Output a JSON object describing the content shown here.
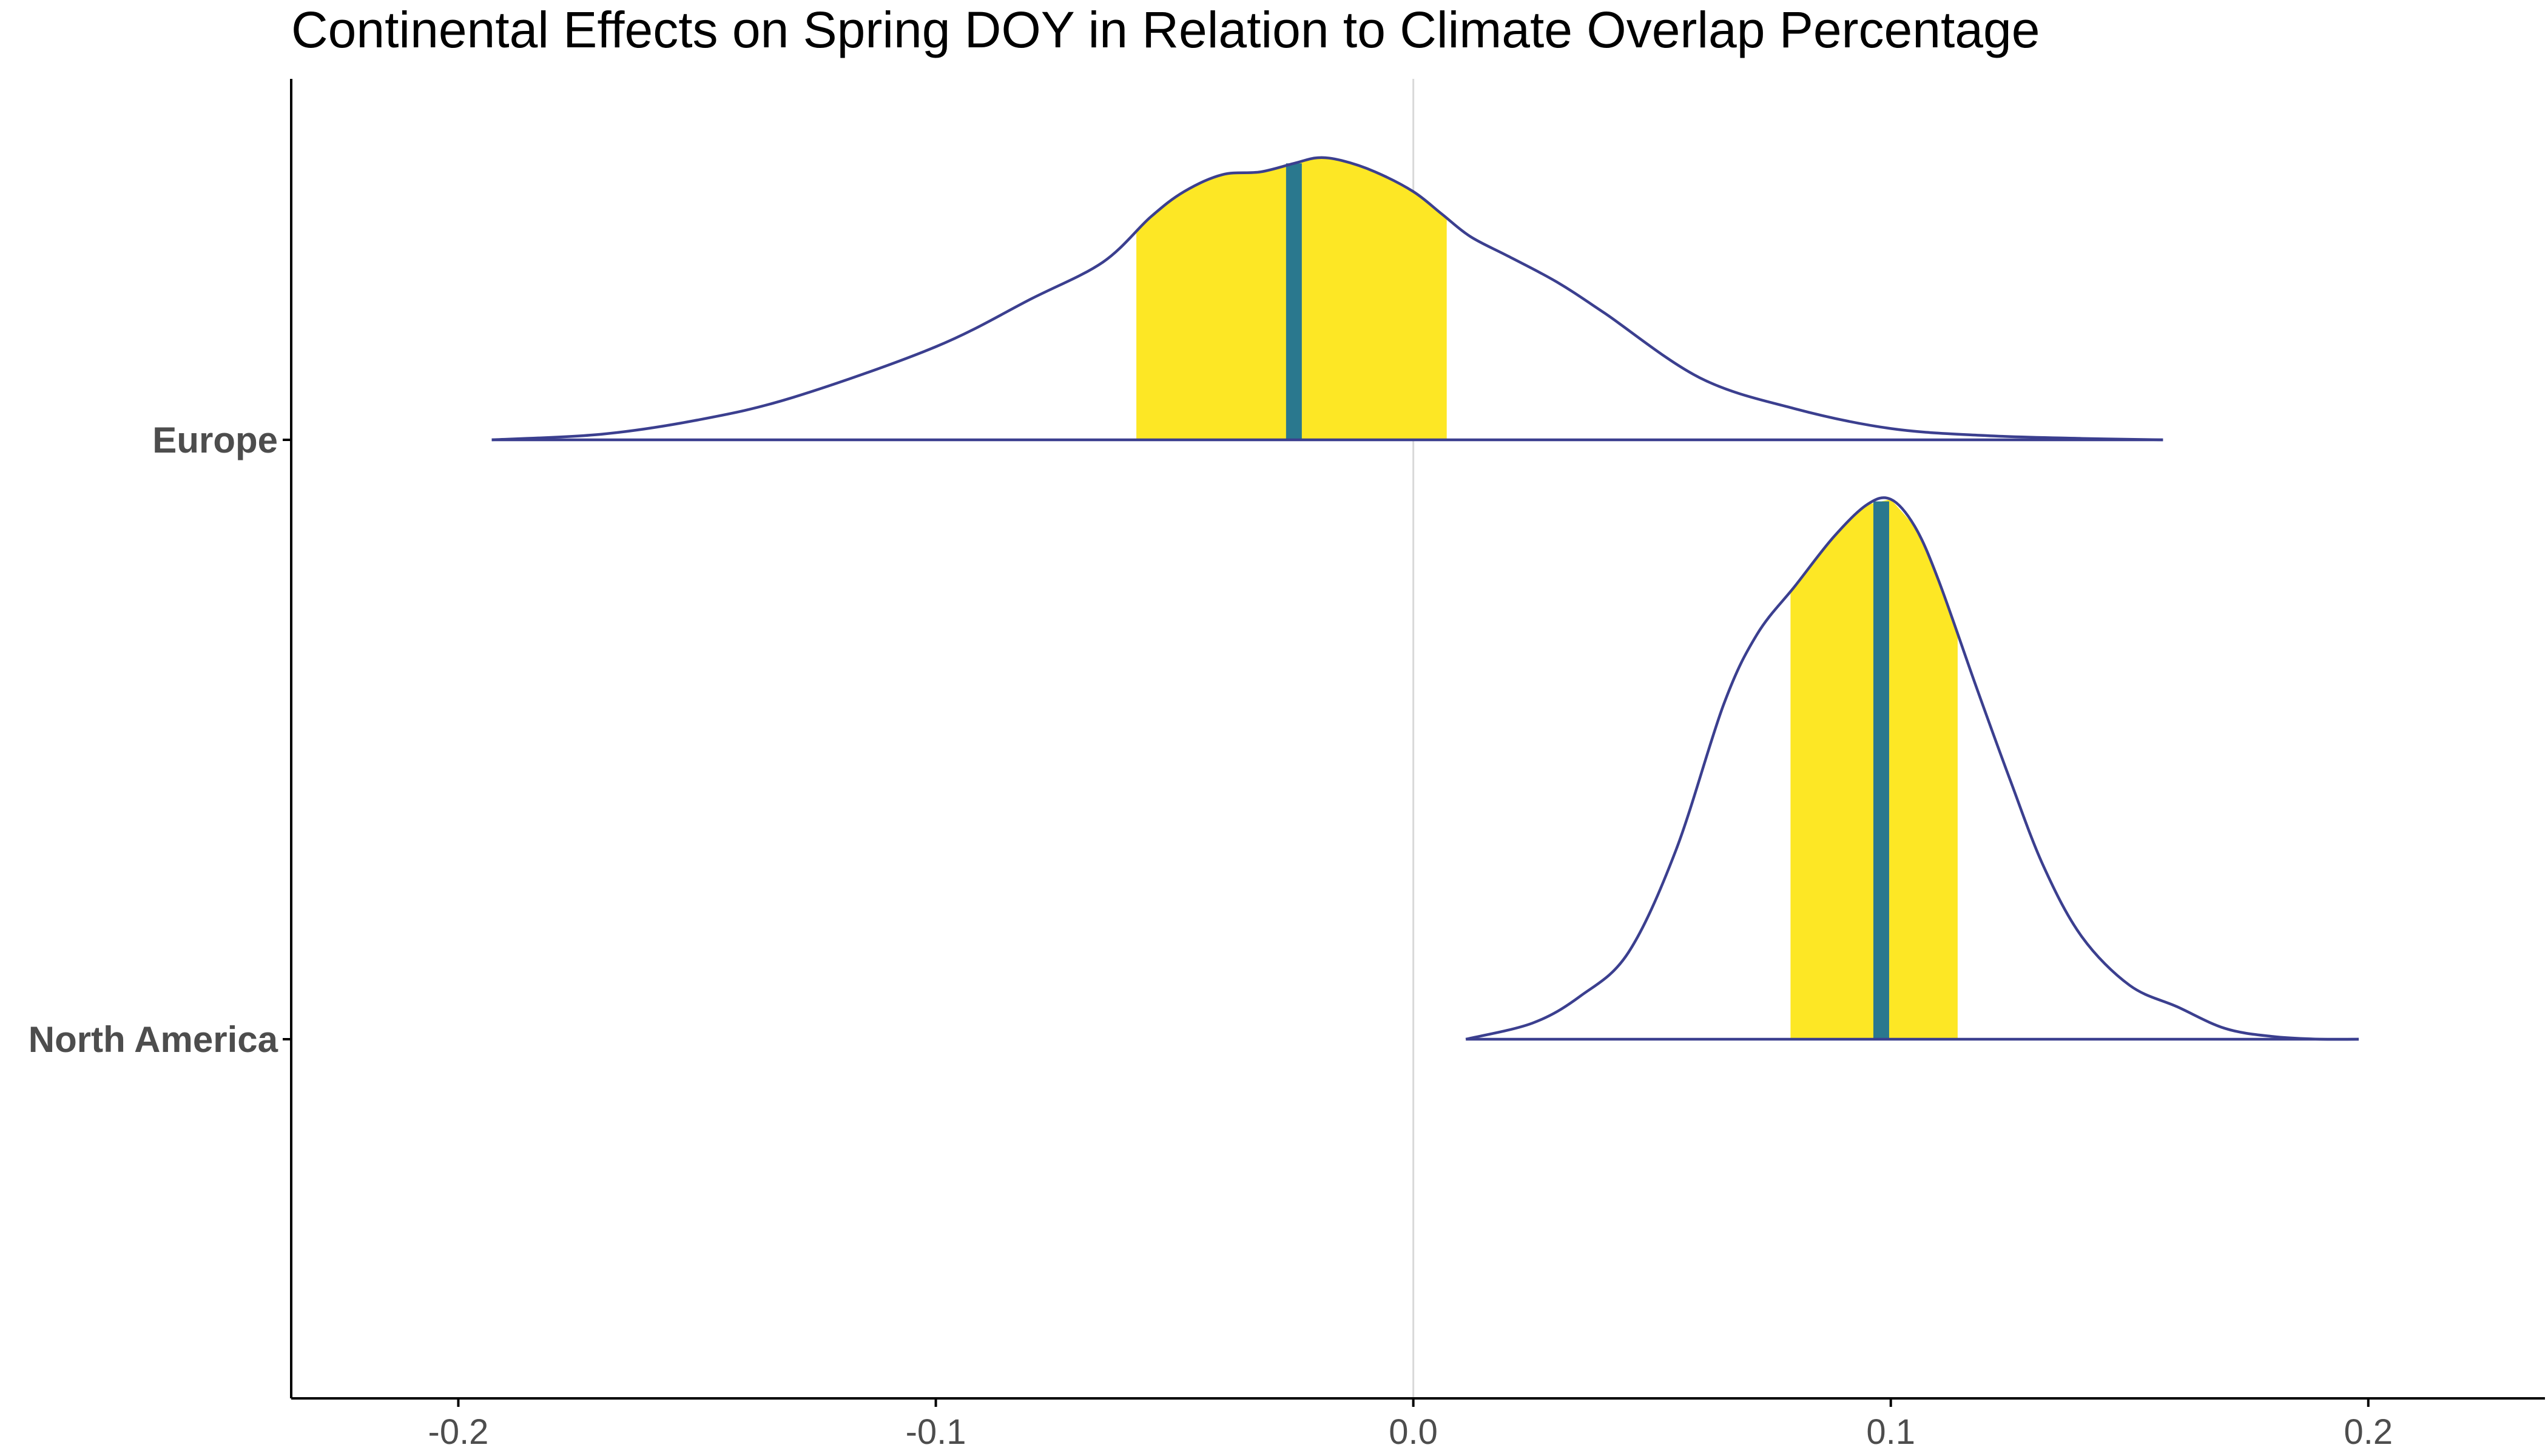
{
  "chart_data": {
    "type": "density_ridgeline",
    "title": "Continental Effects on Spring DOY in Relation to Climate Overlap Percentage",
    "xlabel": "",
    "ylabel": "",
    "xlim": [
      -0.235,
      0.237
    ],
    "xticks": [
      -0.2,
      -0.1,
      0.0,
      0.1,
      0.2
    ],
    "xtick_labels": [
      "-0.2",
      "-0.1",
      "0.0",
      "0.1",
      "0.2"
    ],
    "reference_line_x": 0.0,
    "grid": false,
    "legend": "none",
    "colors": {
      "outline": "#3b3f8f",
      "interval_fill": "#fde725",
      "median_line": "#2a788e",
      "reference_line": "#d9d9d9",
      "axis": "#000000",
      "tick_text": "#4d4d4d"
    },
    "series": [
      {
        "name": "Europe",
        "median": -0.025,
        "interval": [
          -0.058,
          0.007
        ],
        "density_x": [
          -0.193,
          -0.17,
          -0.15,
          -0.13,
          -0.1,
          -0.08,
          -0.065,
          -0.055,
          -0.048,
          -0.04,
          -0.032,
          -0.025,
          -0.02,
          -0.015,
          -0.008,
          0.0,
          0.006,
          0.012,
          0.02,
          0.03,
          0.04,
          0.06,
          0.08,
          0.1,
          0.12,
          0.14,
          0.157
        ],
        "density_y": [
          0.0,
          0.02,
          0.07,
          0.15,
          0.33,
          0.5,
          0.63,
          0.79,
          0.88,
          0.94,
          0.95,
          0.98,
          1.0,
          0.99,
          0.95,
          0.88,
          0.8,
          0.72,
          0.65,
          0.56,
          0.45,
          0.22,
          0.11,
          0.04,
          0.015,
          0.005,
          0.0
        ]
      },
      {
        "name": "North America",
        "median": 0.098,
        "interval": [
          0.079,
          0.114
        ],
        "density_x": [
          0.011,
          0.025,
          0.035,
          0.045,
          0.055,
          0.065,
          0.072,
          0.08,
          0.088,
          0.095,
          0.1,
          0.105,
          0.11,
          0.118,
          0.125,
          0.132,
          0.14,
          0.15,
          0.16,
          0.17,
          0.18,
          0.19,
          0.198
        ],
        "density_y": [
          0.0,
          0.03,
          0.08,
          0.16,
          0.35,
          0.62,
          0.75,
          0.84,
          0.93,
          0.99,
          1.0,
          0.95,
          0.85,
          0.65,
          0.48,
          0.32,
          0.19,
          0.1,
          0.06,
          0.02,
          0.005,
          0.0,
          0.0
        ]
      }
    ]
  }
}
